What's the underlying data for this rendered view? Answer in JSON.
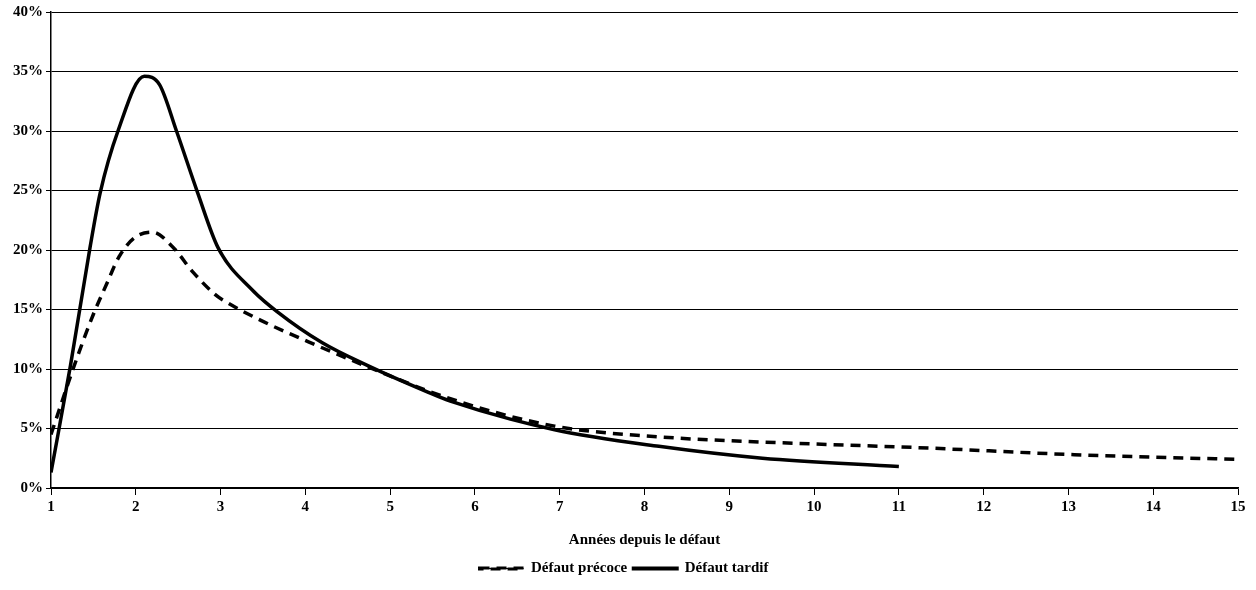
{
  "chart_data": {
    "type": "line",
    "xlabel": "Années depuis le défaut",
    "xlim": [
      1,
      15
    ],
    "xticks": [
      1,
      2,
      3,
      4,
      5,
      6,
      7,
      8,
      9,
      10,
      11,
      12,
      13,
      14,
      15
    ],
    "ylim": [
      0,
      40
    ],
    "yticks": [
      {
        "value": 0,
        "label": "0%"
      },
      {
        "value": 5,
        "label": "5%"
      },
      {
        "value": 10,
        "label": "10%"
      },
      {
        "value": 15,
        "label": "15%"
      },
      {
        "value": 20,
        "label": "20%"
      },
      {
        "value": 25,
        "label": "25%"
      },
      {
        "value": 30,
        "label": "30%"
      },
      {
        "value": 35,
        "label": "35%"
      },
      {
        "value": 40,
        "label": "40%"
      }
    ],
    "grid": "y",
    "legend": "bottom",
    "marker": "none",
    "series": [
      {
        "name": "Défaut précoce",
        "color": "#000000",
        "line_style": "dashed",
        "x": [
          1,
          1.27,
          1.5,
          1.66,
          1.8,
          1.98,
          2.2,
          2.43,
          2.68,
          2.93,
          3.05,
          3.5,
          4.03,
          4.73,
          5.71,
          6.94,
          8.17,
          10,
          11.2,
          13.07,
          15
        ],
        "values": [
          4.5,
          10.2,
          14.6,
          17.2,
          19.4,
          21,
          21.5,
          20.3,
          18.1,
          16.3,
          15.7,
          14,
          12.3,
          10.2,
          7.5,
          5.2,
          4.3,
          3.7,
          3.4,
          2.8,
          2.4
        ]
      },
      {
        "name": "Défaut tardif",
        "color": "#000000",
        "line_style": "solid",
        "x": [
          1,
          1.23,
          1.46,
          1.58,
          1.79,
          2.1,
          2.28,
          2.48,
          2.73,
          2.97,
          3.38,
          3.67,
          4.2,
          4.73,
          5.43,
          5.71,
          6.94,
          8.17,
          9.39,
          11
        ],
        "values": [
          1.3,
          10.3,
          20.2,
          24.8,
          30,
          34.6,
          33.9,
          30,
          24.8,
          20.2,
          16.6,
          14.8,
          12.2,
          10.3,
          8.1,
          7.3,
          4.9,
          3.5,
          2.5,
          1.8
        ]
      }
    ]
  }
}
